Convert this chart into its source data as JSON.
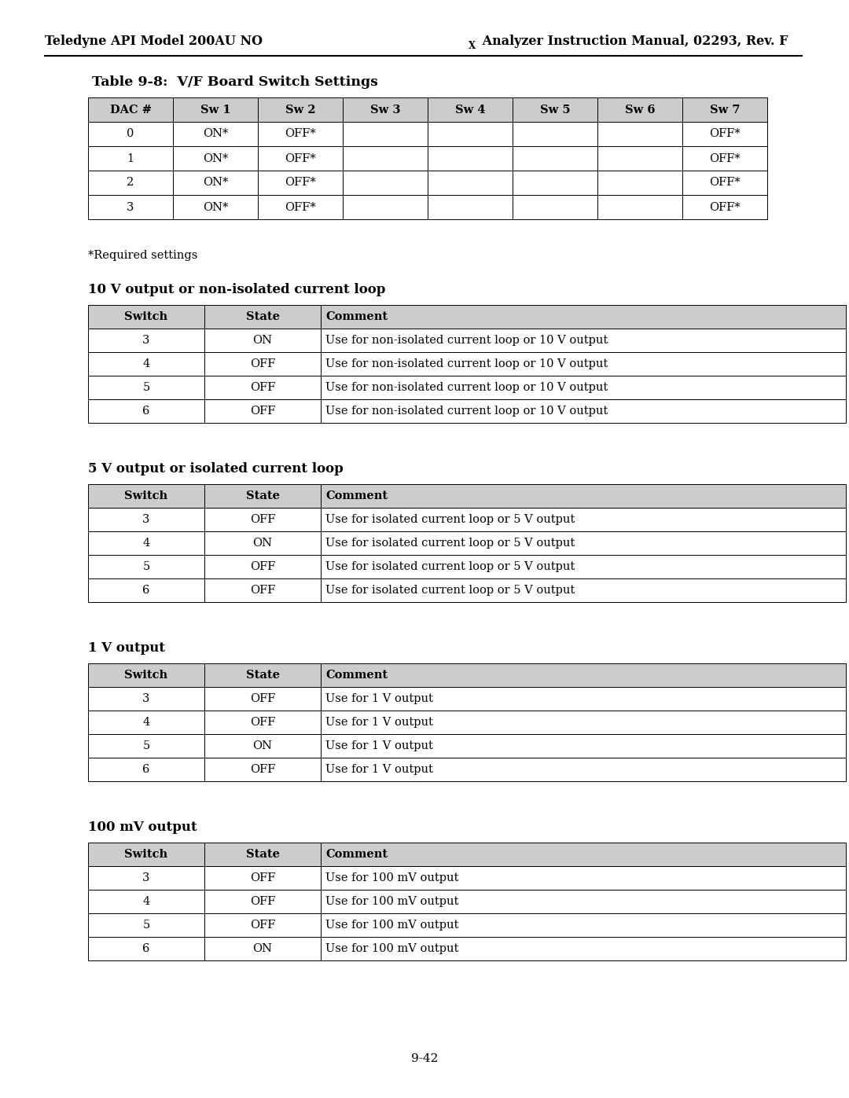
{
  "page_number": "9-42",
  "header_line1": "Teledyne API Model 200AU NO",
  "header_subscript": "X",
  "header_line2": " Analyzer Instruction Manual, 02293, Rev. F",
  "table1_title": "Table 9-8:  V/F Board Switch Settings",
  "table1_headers": [
    "DAC #",
    "Sw 1",
    "Sw 2",
    "Sw 3",
    "Sw 4",
    "Sw 5",
    "Sw 6",
    "Sw 7"
  ],
  "table1_rows": [
    [
      "0",
      "ON*",
      "OFF*",
      "",
      "",
      "",
      "",
      "OFF*"
    ],
    [
      "1",
      "ON*",
      "OFF*",
      "",
      "",
      "",
      "",
      "OFF*"
    ],
    [
      "2",
      "ON*",
      "OFF*",
      "",
      "",
      "",
      "",
      "OFF*"
    ],
    [
      "3",
      "ON*",
      "OFF*",
      "",
      "",
      "",
      "",
      "OFF*"
    ]
  ],
  "required_note": "*Required settings",
  "section2_title": "10 V output or non-isolated current loop",
  "table2_headers": [
    "Switch",
    "State",
    "Comment"
  ],
  "table2_rows": [
    [
      "3",
      "ON",
      "Use for non-isolated current loop or 10 V output"
    ],
    [
      "4",
      "OFF",
      "Use for non-isolated current loop or 10 V output"
    ],
    [
      "5",
      "OFF",
      "Use for non-isolated current loop or 10 V output"
    ],
    [
      "6",
      "OFF",
      "Use for non-isolated current loop or 10 V output"
    ]
  ],
  "section3_title": "5 V output or isolated current loop",
  "table3_rows": [
    [
      "3",
      "OFF",
      "Use for isolated current loop or 5 V output"
    ],
    [
      "4",
      "ON",
      "Use for isolated current loop or 5 V output"
    ],
    [
      "5",
      "OFF",
      "Use for isolated current loop or 5 V output"
    ],
    [
      "6",
      "OFF",
      "Use for isolated current loop or 5 V output"
    ]
  ],
  "section4_title": "1 V output",
  "table4_rows": [
    [
      "3",
      "OFF",
      "Use for 1 V output"
    ],
    [
      "4",
      "OFF",
      "Use for 1 V output"
    ],
    [
      "5",
      "ON",
      "Use for 1 V output"
    ],
    [
      "6",
      "OFF",
      "Use for 1 V output"
    ]
  ],
  "section5_title": "100 mV output",
  "table5_rows": [
    [
      "3",
      "OFF",
      "Use for 100 mV output"
    ],
    [
      "4",
      "OFF",
      "Use for 100 mV output"
    ],
    [
      "5",
      "OFF",
      "Use for 100 mV output"
    ],
    [
      "6",
      "ON",
      "Use for 100 mV output"
    ]
  ],
  "bg_color": "#ffffff",
  "header_bg": "#cccccc",
  "border_color": "#000000",
  "font_color": "#000000"
}
